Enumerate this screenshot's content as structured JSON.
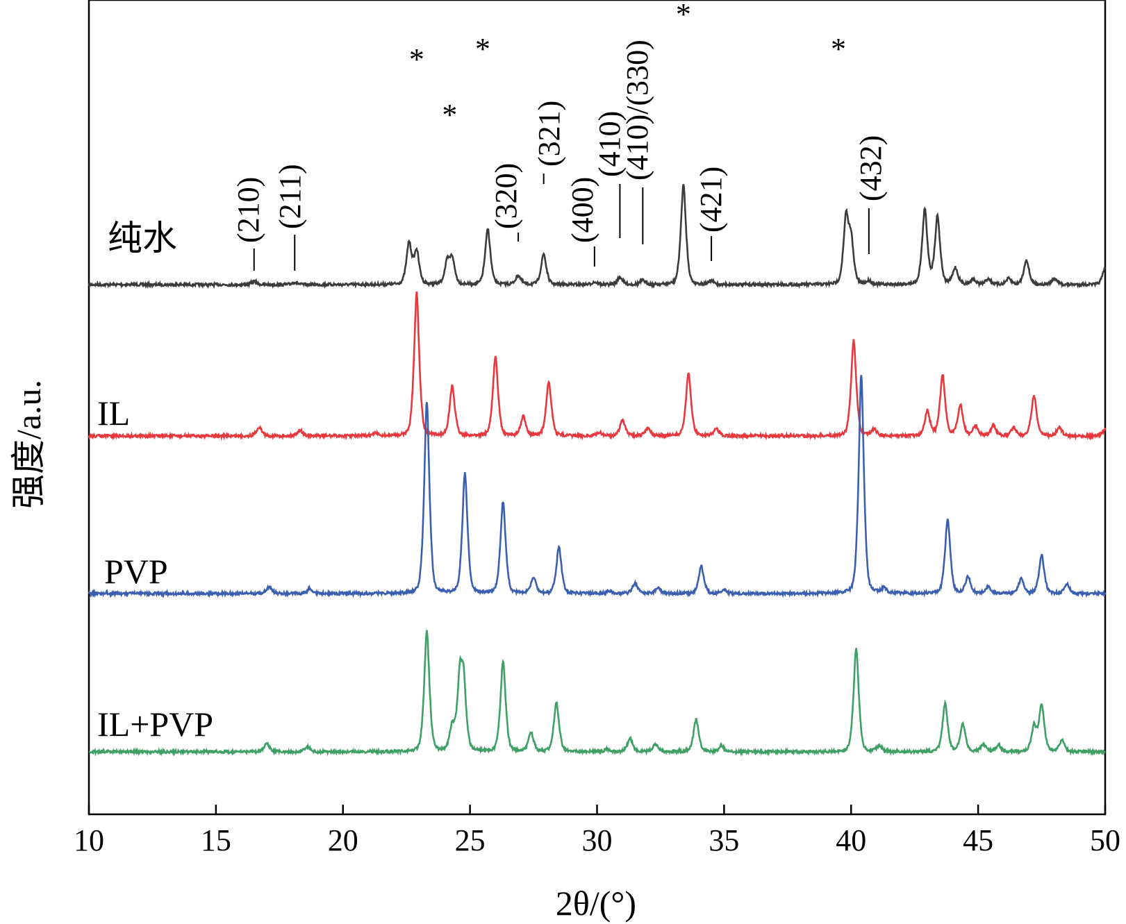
{
  "chart_data": {
    "type": "line",
    "xlabel": "2θ/(°)",
    "ylabel": "强度/a.u.",
    "xlim": [
      10,
      50
    ],
    "xticks": [
      10,
      15,
      20,
      25,
      30,
      35,
      40,
      45,
      50
    ],
    "grid": false,
    "series": [
      {
        "name": "纯水",
        "color": "#3b3b3b",
        "baseline": 0.0,
        "peaks": [
          [
            16.5,
            0.04
          ],
          [
            18.1,
            0.03
          ],
          [
            22.6,
            0.5
          ],
          [
            22.9,
            0.4
          ],
          [
            24.1,
            0.25
          ],
          [
            24.3,
            0.3
          ],
          [
            25.7,
            0.67
          ],
          [
            26.9,
            0.11
          ],
          [
            27.9,
            0.37
          ],
          [
            29.9,
            0.03
          ],
          [
            30.9,
            0.09
          ],
          [
            31.8,
            0.05
          ],
          [
            33.4,
            1.2
          ],
          [
            34.5,
            0.04
          ],
          [
            39.8,
            0.77
          ],
          [
            40.0,
            0.5
          ],
          [
            40.7,
            0.04
          ],
          [
            42.9,
            0.9
          ],
          [
            43.4,
            0.82
          ],
          [
            44.1,
            0.2
          ],
          [
            44.8,
            0.06
          ],
          [
            45.4,
            0.07
          ],
          [
            46.2,
            0.07
          ],
          [
            46.9,
            0.3
          ],
          [
            48.0,
            0.07
          ],
          [
            50.0,
            0.2
          ]
        ]
      },
      {
        "name": "IL",
        "color": "#e8383d",
        "baseline": 0.0,
        "peaks": [
          [
            16.7,
            0.11
          ],
          [
            18.3,
            0.07
          ],
          [
            21.3,
            0.03
          ],
          [
            22.9,
            1.72
          ],
          [
            24.3,
            0.6
          ],
          [
            26.0,
            0.95
          ],
          [
            27.1,
            0.23
          ],
          [
            28.1,
            0.66
          ],
          [
            30.1,
            0.04
          ],
          [
            31.0,
            0.19
          ],
          [
            32.0,
            0.1
          ],
          [
            33.6,
            0.75
          ],
          [
            34.7,
            0.08
          ],
          [
            40.1,
            1.15
          ],
          [
            40.9,
            0.08
          ],
          [
            43.0,
            0.3
          ],
          [
            43.6,
            0.73
          ],
          [
            44.3,
            0.37
          ],
          [
            44.9,
            0.12
          ],
          [
            45.6,
            0.12
          ],
          [
            46.4,
            0.1
          ],
          [
            47.2,
            0.48
          ],
          [
            48.2,
            0.1
          ],
          [
            50.0,
            0.08
          ]
        ]
      },
      {
        "name": "PVP",
        "color": "#3a5fb0",
        "baseline": 0.0,
        "peaks": [
          [
            17.1,
            0.08
          ],
          [
            18.7,
            0.06
          ],
          [
            23.3,
            2.31
          ],
          [
            24.8,
            1.45
          ],
          [
            26.3,
            1.1
          ],
          [
            27.5,
            0.19
          ],
          [
            28.5,
            0.56
          ],
          [
            30.5,
            0.03
          ],
          [
            31.5,
            0.13
          ],
          [
            32.4,
            0.07
          ],
          [
            34.1,
            0.33
          ],
          [
            35.0,
            0.05
          ],
          [
            40.4,
            2.63
          ],
          [
            41.3,
            0.06
          ],
          [
            43.8,
            0.9
          ],
          [
            44.6,
            0.2
          ],
          [
            45.4,
            0.08
          ],
          [
            46.7,
            0.18
          ],
          [
            47.5,
            0.46
          ],
          [
            48.5,
            0.11
          ]
        ]
      },
      {
        "name": "IL+PVP",
        "color": "#3ea064",
        "baseline": 0.0,
        "peaks": [
          [
            17.0,
            0.1
          ],
          [
            18.6,
            0.06
          ],
          [
            23.3,
            1.45
          ],
          [
            24.3,
            0.3
          ],
          [
            24.6,
            0.8
          ],
          [
            24.75,
            0.72
          ],
          [
            26.3,
            1.09
          ],
          [
            27.4,
            0.23
          ],
          [
            28.4,
            0.6
          ],
          [
            30.4,
            0.03
          ],
          [
            31.3,
            0.16
          ],
          [
            32.3,
            0.09
          ],
          [
            33.9,
            0.39
          ],
          [
            34.9,
            0.07
          ],
          [
            40.2,
            1.25
          ],
          [
            41.1,
            0.07
          ],
          [
            43.7,
            0.58
          ],
          [
            44.4,
            0.33
          ],
          [
            45.2,
            0.09
          ],
          [
            45.8,
            0.08
          ],
          [
            47.2,
            0.3
          ],
          [
            47.5,
            0.56
          ],
          [
            48.3,
            0.14
          ]
        ]
      }
    ],
    "reflections": [
      "(210)",
      "(211)",
      "(320)",
      "(321)",
      "(400)",
      "(410)",
      "(410)/(330)",
      "(421)",
      "(432)"
    ],
    "star_marker": "*"
  }
}
